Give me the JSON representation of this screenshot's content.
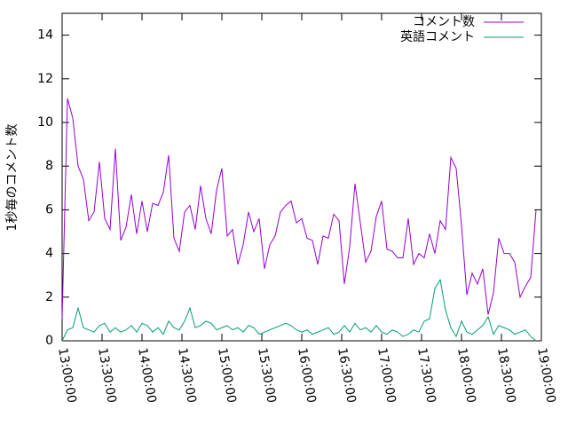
{
  "chart_data": {
    "type": "line",
    "y_label": "1秒毎のコメント数",
    "x": [
      "13:00:00",
      "13:04:00",
      "13:08:00",
      "13:12:00",
      "13:16:00",
      "13:20:00",
      "13:24:00",
      "13:28:00",
      "13:32:00",
      "13:36:00",
      "13:40:00",
      "13:44:00",
      "13:48:00",
      "13:52:00",
      "13:56:00",
      "14:00:00",
      "14:04:00",
      "14:08:00",
      "14:12:00",
      "14:16:00",
      "14:20:00",
      "14:24:00",
      "14:28:00",
      "14:32:00",
      "14:36:00",
      "14:40:00",
      "14:44:00",
      "14:48:00",
      "14:52:00",
      "14:56:00",
      "15:00:00",
      "15:04:00",
      "15:08:00",
      "15:12:00",
      "15:16:00",
      "15:20:00",
      "15:24:00",
      "15:28:00",
      "15:32:00",
      "15:36:00",
      "15:40:00",
      "15:44:00",
      "15:48:00",
      "15:52:00",
      "15:56:00",
      "16:00:00",
      "16:04:00",
      "16:08:00",
      "16:12:00",
      "16:16:00",
      "16:20:00",
      "16:24:00",
      "16:28:00",
      "16:32:00",
      "16:36:00",
      "16:40:00",
      "16:44:00",
      "16:48:00",
      "16:52:00",
      "16:56:00",
      "17:00:00",
      "17:04:00",
      "17:08:00",
      "17:12:00",
      "17:16:00",
      "17:20:00",
      "17:24:00",
      "17:28:00",
      "17:32:00",
      "17:36:00",
      "17:40:00",
      "17:44:00",
      "17:48:00",
      "17:52:00",
      "17:56:00",
      "18:00:00",
      "18:04:00",
      "18:08:00",
      "18:12:00",
      "18:16:00",
      "18:20:00",
      "18:24:00",
      "18:28:00",
      "18:32:00",
      "18:36:00",
      "18:40:00",
      "18:44:00",
      "18:48:00",
      "18:52:00",
      "18:56:00"
    ],
    "series": [
      {
        "name": "コメント数",
        "color": "#9400d3",
        "values": [
          1.0,
          11.1,
          10.2,
          8.0,
          7.4,
          5.5,
          5.9,
          8.2,
          5.6,
          5.1,
          8.8,
          4.6,
          5.2,
          6.7,
          4.9,
          6.4,
          5.0,
          6.3,
          6.2,
          6.8,
          8.5,
          4.7,
          4.1,
          5.9,
          6.2,
          5.1,
          7.1,
          5.6,
          4.9,
          6.9,
          7.9,
          4.8,
          5.1,
          3.5,
          4.4,
          5.9,
          5.0,
          5.6,
          3.3,
          4.4,
          4.8,
          5.9,
          6.2,
          6.4,
          5.4,
          5.6,
          4.7,
          4.6,
          3.5,
          4.8,
          4.7,
          5.8,
          5.5,
          2.6,
          4.3,
          7.2,
          5.4,
          3.6,
          4.1,
          5.7,
          6.4,
          4.2,
          4.1,
          3.8,
          3.8,
          5.6,
          3.5,
          4.0,
          3.8,
          4.9,
          4.0,
          5.5,
          5.1,
          8.4,
          7.9,
          5.3,
          2.1,
          3.1,
          2.6,
          3.3,
          1.2,
          2.2,
          4.7,
          4.0,
          4.0,
          3.6,
          2.0,
          2.5,
          2.9,
          6.0
        ]
      },
      {
        "name": "英語コメント",
        "color": "#009e73",
        "values": [
          0.0,
          0.5,
          0.6,
          1.5,
          0.6,
          0.5,
          0.4,
          0.7,
          0.8,
          0.4,
          0.6,
          0.4,
          0.5,
          0.7,
          0.4,
          0.8,
          0.7,
          0.4,
          0.6,
          0.3,
          0.9,
          0.6,
          0.5,
          0.9,
          1.5,
          0.6,
          0.7,
          0.9,
          0.8,
          0.5,
          0.6,
          0.7,
          0.5,
          0.6,
          0.4,
          0.7,
          0.6,
          0.3,
          0.4,
          0.5,
          0.6,
          0.7,
          0.8,
          0.7,
          0.5,
          0.4,
          0.5,
          0.3,
          0.4,
          0.5,
          0.6,
          0.3,
          0.4,
          0.7,
          0.4,
          0.8,
          0.5,
          0.6,
          0.4,
          0.7,
          0.4,
          0.3,
          0.5,
          0.4,
          0.2,
          0.3,
          0.5,
          0.4,
          0.9,
          1.0,
          2.4,
          2.8,
          1.4,
          0.6,
          0.2,
          0.9,
          0.4,
          0.3,
          0.5,
          0.7,
          1.1,
          0.3,
          0.7,
          0.6,
          0.5,
          0.3,
          0.4,
          0.5,
          0.2,
          0.0
        ]
      }
    ],
    "xlim": [
      "13:00:00",
      "19:00:00"
    ],
    "xticks": [
      "13:00:00",
      "13:30:00",
      "14:00:00",
      "14:30:00",
      "15:00:00",
      "15:30:00",
      "16:00:00",
      "16:30:00",
      "17:00:00",
      "17:30:00",
      "18:00:00",
      "18:30:00",
      "19:00:00"
    ],
    "ylim": [
      0,
      15
    ],
    "yticks": [
      0,
      2,
      4,
      6,
      8,
      10,
      12,
      14
    ],
    "legend": "top-right",
    "grid": false
  }
}
